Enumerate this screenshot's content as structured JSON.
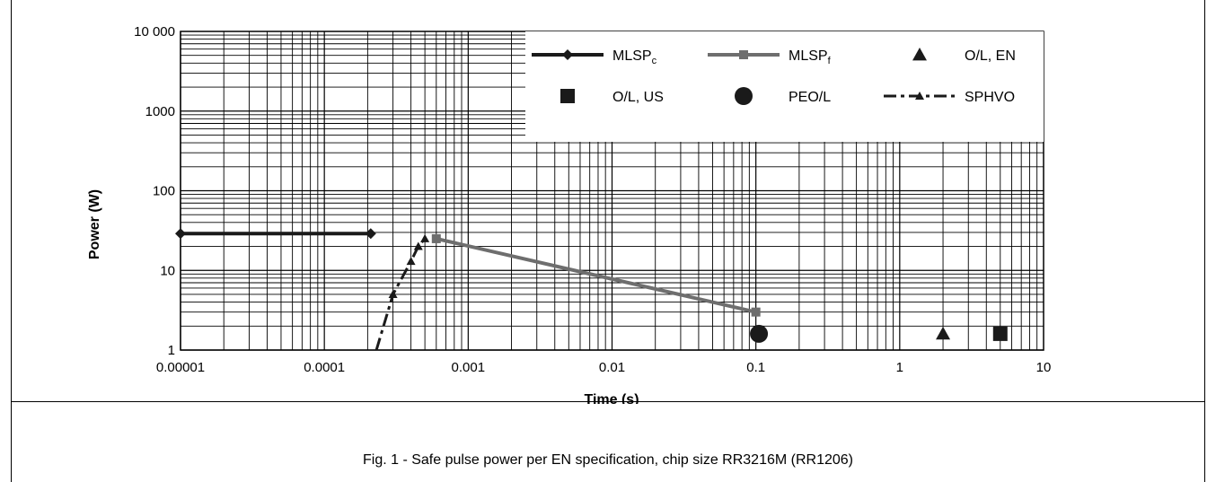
{
  "chart_data": {
    "type": "line",
    "xscale": "log",
    "yscale": "log",
    "xlim": [
      1e-05,
      10
    ],
    "ylim": [
      1,
      10000
    ],
    "xlabel": "Time (s)",
    "ylabel": "Power (W)",
    "x_ticks": [
      {
        "value": 1e-05,
        "label": "0.00001"
      },
      {
        "value": 0.0001,
        "label": "0.0001"
      },
      {
        "value": 0.001,
        "label": "0.001"
      },
      {
        "value": 0.01,
        "label": "0.01"
      },
      {
        "value": 0.1,
        "label": "0.1"
      },
      {
        "value": 1,
        "label": "1"
      },
      {
        "value": 10,
        "label": "10"
      }
    ],
    "y_ticks": [
      {
        "value": 1,
        "label": "1"
      },
      {
        "value": 10,
        "label": "10"
      },
      {
        "value": 100,
        "label": "100"
      },
      {
        "value": 1000,
        "label": "1000"
      },
      {
        "value": 10000,
        "label": "10 000"
      }
    ],
    "grid": true,
    "legend_position": "top-right",
    "colors": {
      "dark": "#1a1a1a",
      "grey": "#6e6e6e"
    },
    "series": [
      {
        "key": "mlspc",
        "name": "MLSP",
        "name_sub": "c",
        "marker": "diamond",
        "line": "solid",
        "color": "#1a1a1a",
        "points": [
          [
            1e-05,
            29
          ],
          [
            0.00021,
            29
          ]
        ]
      },
      {
        "key": "mlspf",
        "name": "MLSP",
        "name_sub": "f",
        "marker": "square",
        "line": "solid",
        "color": "#6e6e6e",
        "points": [
          [
            0.0006,
            25
          ],
          [
            0.1,
            3
          ]
        ]
      },
      {
        "key": "olen",
        "name": "O/L, EN",
        "marker": "triangle",
        "line": "none",
        "color": "#1a1a1a",
        "points": [
          [
            2,
            1.6
          ]
        ]
      },
      {
        "key": "olus",
        "name": "O/L, US",
        "marker": "square-large",
        "line": "none",
        "color": "#1a1a1a",
        "points": [
          [
            5,
            1.6
          ]
        ]
      },
      {
        "key": "peol",
        "name": "PEO/L",
        "marker": "circle",
        "line": "none",
        "color": "#1a1a1a",
        "points": [
          [
            0.105,
            1.6
          ]
        ]
      },
      {
        "key": "sphvo",
        "name": "SPHVO",
        "marker": "triangle-small",
        "line": "dashdot",
        "color": "#1a1a1a",
        "points": [
          [
            0.00023,
            1
          ],
          [
            0.0003,
            5
          ],
          [
            0.0004,
            13
          ],
          [
            0.00045,
            20
          ],
          [
            0.0005,
            25
          ]
        ]
      }
    ]
  },
  "caption": "Fig. 1 - Safe pulse power per EN specification, chip size RR3216M (RR1206)"
}
